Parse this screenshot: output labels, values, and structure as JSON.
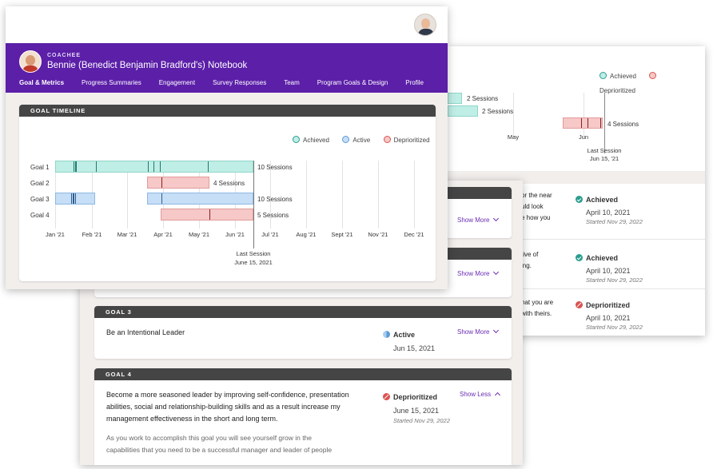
{
  "header": {
    "role": "COACHEE",
    "title": "Bennie (Benedict Benjamin Bradford's) Notebook",
    "nav": [
      "Goal & Metrics",
      "Progress Summaries",
      "Engagement",
      "Survey Responses",
      "Team",
      "Program Goals & Design",
      "Profile"
    ]
  },
  "timeline": {
    "heading": "GOAL TIMELINE",
    "legend": [
      "Achieved",
      "Active",
      "Deprioritized"
    ],
    "months": [
      "Jan '21",
      "Feb '21",
      "Mar '21",
      "Apr '21",
      "May '21",
      "Jun '21",
      "Jul '21",
      "Aug '21",
      "Sept '21",
      "Nov '21",
      "Dec '21"
    ],
    "goals": [
      {
        "label": "Goal 1",
        "sessions": "10 Sessions",
        "status": "achieved"
      },
      {
        "label": "Goal 2",
        "sessions": "4 Sessions",
        "status": "deprioritized"
      },
      {
        "label": "Goal 3",
        "sessions": "10 Sessions",
        "status": "active"
      },
      {
        "label": "Goal 4",
        "sessions": "5 Sessions",
        "status": "deprioritized"
      }
    ],
    "last_session_label": "Last Session",
    "last_session_date": "June 15, 2021"
  },
  "back_timeline": {
    "legend": [
      "Achieved",
      "Deprioritized"
    ],
    "sessions": [
      "2 Sessions",
      "2 Sessions",
      "4 Sessions"
    ],
    "months": [
      "May",
      "Jun"
    ],
    "last_session_label": "Last Session",
    "last_session_date": "Jun 15, '21"
  },
  "back_rows": [
    {
      "snippet": [
        "or the near",
        "uld look",
        "e how you"
      ],
      "status": "Achieved",
      "date": "April 10, 2021",
      "started": "Started Nov 29, 2022"
    },
    {
      "snippet": [
        "tive of",
        "ing."
      ],
      "status": "Achieved",
      "date": "April 10, 2021",
      "started": "Started Nov 29, 2022"
    },
    {
      "snippet": [
        "hat you are",
        "with theirs."
      ],
      "status": "Deprioritized",
      "date": "April 10, 2021",
      "started": "Started Nov 29, 2022"
    }
  ],
  "middle": {
    "show_more": "Show More",
    "show_less": "Show Less",
    "goal3": {
      "heading": "GOAL 3",
      "text": "Be an Intentional Leader",
      "status": "Active",
      "date": "Jun 15, 2021"
    },
    "goal4": {
      "heading": "GOAL 4",
      "text": "Become a more seasoned leader by improving self-confidence, presentation abilities, social and relationship-building skills and as a result increase my management effectiveness in the short and long term.",
      "status": "Deprioritized",
      "date": "June 15, 2021",
      "started": "Started Nov 29, 2022",
      "detail": "As you work to accomplish this goal you will see yourself grow in the capabilities that you need to be a successful manager and leader of people"
    }
  },
  "colors": {
    "purple": "#5b1fa8",
    "achieved": "#2a9d8f",
    "active": "#5b9bd5",
    "deprioritized": "#d9534f"
  }
}
